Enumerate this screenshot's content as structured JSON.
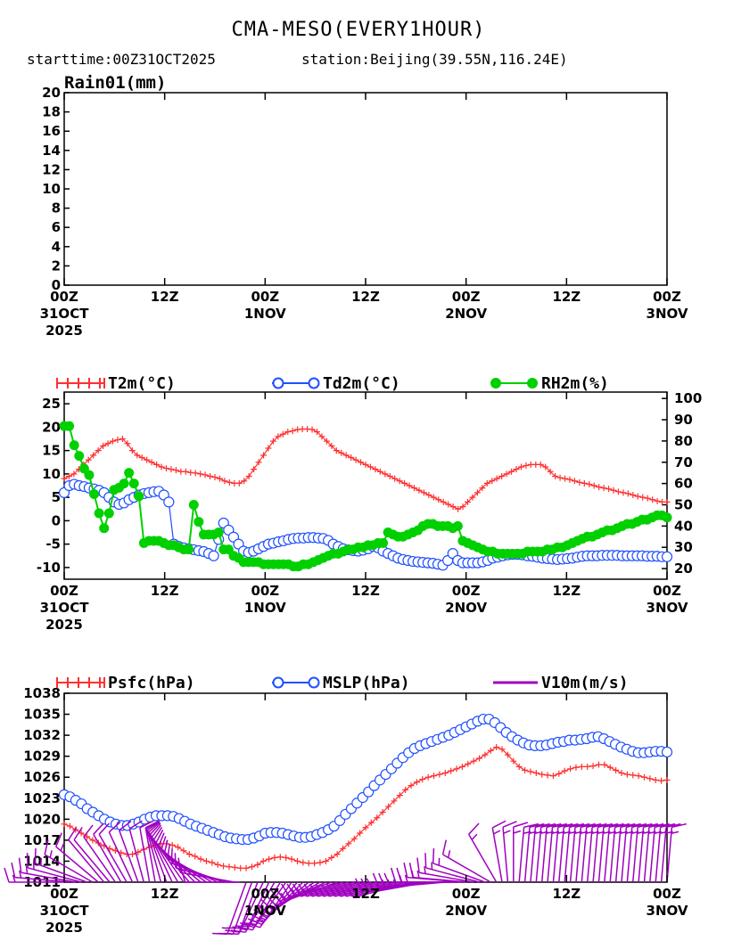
{
  "header": {
    "title": "CMA-MESO(EVERY1HOUR)",
    "starttime": "starttime:00Z31OCT2025",
    "station": "station:Beijing(39.55N,116.24E)"
  },
  "colors": {
    "t2m": "#ff3030",
    "td2m": "#2050ff",
    "rh2m": "#00d000",
    "psfc": "#ff3030",
    "mslp": "#2050ff",
    "wind": "#a000c0"
  },
  "x_labels": [
    [
      "00Z",
      "31OCT",
      "2025"
    ],
    [
      "12Z"
    ],
    [
      "00Z",
      "1NOV"
    ],
    [
      "12Z"
    ],
    [
      "00Z",
      "2NOV"
    ],
    [
      "12Z"
    ],
    [
      "00Z",
      "3NOV"
    ]
  ],
  "chart_data": [
    {
      "type": "line",
      "title": "Rain01(mm)",
      "ylim": [
        0,
        20
      ],
      "yticks": [
        "0",
        "2",
        "4",
        "6",
        "8",
        "10",
        "12",
        "14",
        "16",
        "18",
        "20"
      ],
      "hours": [],
      "series": [
        {
          "name": "Rain01(mm)",
          "values": []
        }
      ]
    },
    {
      "type": "line",
      "ylim_left": [
        -12.5,
        27.5
      ],
      "ylim_right": [
        15,
        103
      ],
      "yticks_left": [
        "-10",
        "-5",
        "0",
        "5",
        "10",
        "15",
        "20",
        "25"
      ],
      "yticks_right": [
        "20",
        "30",
        "40",
        "50",
        "60",
        "70",
        "80",
        "90",
        "100"
      ],
      "legend": [
        "T2m(°C)",
        "Td2m(°C)",
        "RH2m(%)"
      ],
      "series": [
        {
          "name": "T2m(°C)",
          "axis": "left",
          "values": [
            9,
            9.5,
            10,
            11,
            12,
            13,
            14,
            15,
            16,
            16.5,
            17,
            17.3,
            17.5,
            16.5,
            15,
            14,
            13.5,
            13,
            12.5,
            12,
            11.5,
            11.2,
            11,
            10.8,
            10.5,
            10.5,
            10.3,
            10.2,
            10,
            9.8,
            9.5,
            9.3,
            9,
            8.5,
            8.2,
            8,
            8,
            8.5,
            9.5,
            11,
            12.5,
            14,
            15.5,
            17,
            18,
            18.5,
            19,
            19.2,
            19.5,
            19.6,
            19.6,
            19.5,
            19,
            18,
            17,
            16,
            15,
            14.5,
            14,
            13.5,
            13,
            12.5,
            12,
            11.5,
            11,
            10.5,
            10,
            9.5,
            9,
            8.5,
            8,
            7.5,
            7,
            6.5,
            6,
            5.5,
            5,
            4.5,
            4,
            3.5,
            3,
            2.5,
            3,
            4,
            5,
            6,
            7,
            8,
            8.5,
            9,
            9.5,
            10,
            10.5,
            11,
            11.5,
            11.8,
            12,
            12,
            12,
            11.5,
            10.5,
            9.5,
            9.2,
            9,
            8.8,
            8.5,
            8.2,
            8,
            7.8,
            7.5,
            7.2,
            7,
            6.8,
            6.5,
            6.2,
            6,
            5.8,
            5.5,
            5.2,
            5,
            4.8,
            4.5,
            4.2,
            4,
            4
          ]
        },
        {
          "name": "Td2m(°C)",
          "axis": "left",
          "values": [
            6,
            7.5,
            7.8,
            7.5,
            7.3,
            7,
            6.8,
            6.5,
            6,
            5,
            4,
            3.5,
            3.8,
            4.5,
            5,
            5.5,
            5.8,
            6,
            6.2,
            6.3,
            5.5,
            4,
            -5,
            -5.5,
            -5.8,
            -6,
            -6.2,
            -6.4,
            -6.6,
            -7,
            -7.5,
            -4,
            -0.5,
            -2,
            -3.5,
            -5,
            -6.5,
            -6.8,
            -6.5,
            -6,
            -5.5,
            -5,
            -4.8,
            -4.5,
            -4.3,
            -4,
            -3.8,
            -3.7,
            -3.7,
            -3.6,
            -3.6,
            -3.7,
            -3.8,
            -4.2,
            -5,
            -5.5,
            -6,
            -6.2,
            -6.4,
            -6.5,
            -6.3,
            -6,
            -5.5,
            -5.8,
            -6.5,
            -7,
            -7.5,
            -8,
            -8.3,
            -8.5,
            -8.7,
            -8.8,
            -8.9,
            -9,
            -9.1,
            -9.3,
            -9.5,
            -8.5,
            -7,
            -8.5,
            -9,
            -9,
            -9,
            -9,
            -8.8,
            -8.5,
            -8,
            -7.8,
            -7.5,
            -7.3,
            -7.2,
            -7.2,
            -7.3,
            -7.5,
            -7.6,
            -7.8,
            -8,
            -8.1,
            -8.2,
            -8.3,
            -8.2,
            -8.1,
            -8,
            -7.8,
            -7.6,
            -7.5,
            -7.5,
            -7.5,
            -7.4,
            -7.4,
            -7.4,
            -7.4,
            -7.5,
            -7.5,
            -7.5,
            -7.5,
            -7.5,
            -7.6,
            -7.6,
            -7.6,
            -7.7,
            -7.7
          ]
        },
        {
          "name": "RH2m(%)",
          "axis": "right",
          "values": [
            87,
            87,
            78,
            73,
            67,
            64,
            55,
            46,
            39,
            46,
            57,
            58,
            60,
            65,
            60,
            54,
            32,
            33,
            33,
            33,
            32,
            31,
            31,
            30,
            29,
            29,
            50,
            42,
            36,
            36,
            36,
            37,
            29,
            29,
            26,
            25,
            23,
            23,
            23,
            23,
            22,
            22,
            22,
            22,
            22,
            22,
            21,
            21,
            22,
            22,
            23,
            24,
            25,
            26,
            27,
            27,
            28,
            29,
            29,
            30,
            30,
            31,
            31,
            32,
            32,
            37,
            36,
            35,
            35,
            36,
            37,
            38,
            40,
            41,
            41,
            40,
            40,
            40,
            39,
            40,
            33,
            32,
            31,
            30,
            29,
            28,
            28,
            27,
            27,
            27,
            27,
            27,
            27,
            28,
            28,
            28,
            28,
            29,
            29,
            30,
            30,
            31,
            32,
            33,
            34,
            35,
            35,
            36,
            37,
            38,
            38,
            39,
            40,
            41,
            41,
            42,
            43,
            43,
            44,
            45,
            45,
            44
          ]
        }
      ]
    },
    {
      "type": "line",
      "ylim": [
        1011,
        1038
      ],
      "yticks": [
        "1011",
        "1014",
        "1017",
        "1020",
        "1023",
        "1026",
        "1029",
        "1032",
        "1035",
        "1038"
      ],
      "legend": [
        "Psfc(hPa)",
        "MSLP(hPa)",
        "V10m(m/s)"
      ],
      "series": [
        {
          "name": "Psfc(hPa)",
          "values": [
            1019.3,
            1019,
            1018.5,
            1018,
            1017.5,
            1017,
            1016.6,
            1016.2,
            1015.8,
            1015.5,
            1015.2,
            1015,
            1015,
            1015.3,
            1015.7,
            1016,
            1016.3,
            1016.5,
            1016.5,
            1016.3,
            1016,
            1015.5,
            1015,
            1014.7,
            1014.3,
            1014,
            1013.8,
            1013.5,
            1013.3,
            1013.2,
            1013.1,
            1013,
            1013,
            1013.2,
            1013.5,
            1014,
            1014.3,
            1014.5,
            1014.6,
            1014.5,
            1014.3,
            1014,
            1013.8,
            1013.7,
            1013.7,
            1013.8,
            1014,
            1014.5,
            1015,
            1015.8,
            1016.5,
            1017.2,
            1018,
            1018.8,
            1019.5,
            1020.2,
            1021,
            1021.8,
            1022.6,
            1023.4,
            1024.2,
            1024.8,
            1025.3,
            1025.7,
            1026,
            1026.2,
            1026.4,
            1026.6,
            1026.9,
            1027.2,
            1027.5,
            1027.9,
            1028.3,
            1028.7,
            1029.2,
            1029.8,
            1030.3,
            1030,
            1029.2,
            1028.3,
            1027.5,
            1027,
            1026.8,
            1026.6,
            1026.4,
            1026.3,
            1026.2,
            1026.5,
            1026.9,
            1027.2,
            1027.4,
            1027.5,
            1027.5,
            1027.6,
            1027.8,
            1027.8,
            1027.4,
            1027,
            1026.6,
            1026.4,
            1026.3,
            1026.2,
            1026,
            1025.8,
            1025.6,
            1025.5,
            1025.6
          ]
        },
        {
          "name": "MSLP(hPa)",
          "values": [
            1023.5,
            1023.2,
            1022.7,
            1022.2,
            1021.5,
            1021,
            1020.5,
            1020,
            1019.6,
            1019.3,
            1019.1,
            1019.1,
            1019.3,
            1019.6,
            1020,
            1020.3,
            1020.5,
            1020.5,
            1020.5,
            1020.4,
            1020.1,
            1019.7,
            1019.3,
            1019,
            1018.7,
            1018.4,
            1018.1,
            1017.8,
            1017.5,
            1017.3,
            1017.2,
            1017.1,
            1017.1,
            1017.3,
            1017.6,
            1018,
            1018.1,
            1018.1,
            1018,
            1017.8,
            1017.6,
            1017.4,
            1017.4,
            1017.5,
            1017.8,
            1018.1,
            1018.5,
            1019,
            1019.8,
            1020.7,
            1021.5,
            1022.3,
            1023.1,
            1023.9,
            1024.8,
            1025.6,
            1026.4,
            1027.2,
            1028,
            1028.8,
            1029.5,
            1030.1,
            1030.5,
            1030.8,
            1031.1,
            1031.4,
            1031.7,
            1032,
            1032.4,
            1032.8,
            1033.2,
            1033.6,
            1034,
            1034.3,
            1034.3,
            1033.8,
            1033.1,
            1032.4,
            1031.8,
            1031.3,
            1030.9,
            1030.6,
            1030.5,
            1030.5,
            1030.6,
            1030.8,
            1031,
            1031.1,
            1031.3,
            1031.3,
            1031.4,
            1031.5,
            1031.7,
            1031.8,
            1031.5,
            1031.1,
            1030.7,
            1030.3,
            1030,
            1029.7,
            1029.5,
            1029.5,
            1029.6,
            1029.7,
            1029.7,
            1029.6
          ]
        }
      ],
      "wind_barbs": {
        "name": "V10m(m/s)",
        "directions_deg": [
          270,
          275,
          280,
          285,
          290,
          300,
          310,
          320,
          320,
          325,
          330,
          330,
          335,
          340,
          345,
          350,
          350,
          345,
          340,
          335,
          330,
          325,
          320,
          315,
          310,
          305,
          300,
          295,
          290,
          285,
          280,
          270,
          200,
          200,
          200,
          205,
          205,
          210,
          210,
          215,
          215,
          220,
          225,
          230,
          235,
          240,
          245,
          250,
          250,
          255,
          255,
          255,
          255,
          255,
          255,
          255,
          255,
          255,
          255,
          255,
          255,
          255,
          260,
          260,
          260,
          265,
          265,
          265,
          270,
          270,
          275,
          275,
          280,
          285,
          290,
          300,
          330,
          350,
          355,
          0,
          5,
          5,
          5,
          5,
          5,
          5,
          5,
          5,
          5,
          5,
          5,
          5,
          5,
          5,
          5,
          5,
          5,
          5,
          5,
          5,
          5,
          5,
          5,
          5,
          5,
          5,
          5
        ],
        "speeds_ms": [
          6,
          6,
          6,
          6,
          6,
          6,
          6,
          5,
          5,
          5,
          5,
          5,
          5,
          5,
          5,
          5,
          5,
          5,
          5,
          5,
          5,
          5,
          5,
          5,
          4,
          4,
          4,
          4,
          4,
          4,
          4,
          4,
          6,
          6,
          6,
          6,
          6,
          6,
          6,
          6,
          6,
          6,
          6,
          6,
          6,
          6,
          6,
          6,
          6,
          6,
          6,
          6,
          6,
          6,
          6,
          6,
          6,
          6,
          6,
          6,
          6,
          6,
          6,
          6,
          6,
          6,
          6,
          6,
          6,
          6,
          6,
          6,
          6,
          6,
          6,
          6,
          6,
          6,
          6,
          6,
          6,
          6,
          6,
          6,
          6,
          6,
          6,
          6,
          6,
          6,
          6,
          6,
          6,
          6,
          6,
          6,
          6,
          6,
          6,
          6,
          6,
          6,
          6,
          6,
          6,
          6,
          6
        ]
      }
    }
  ]
}
